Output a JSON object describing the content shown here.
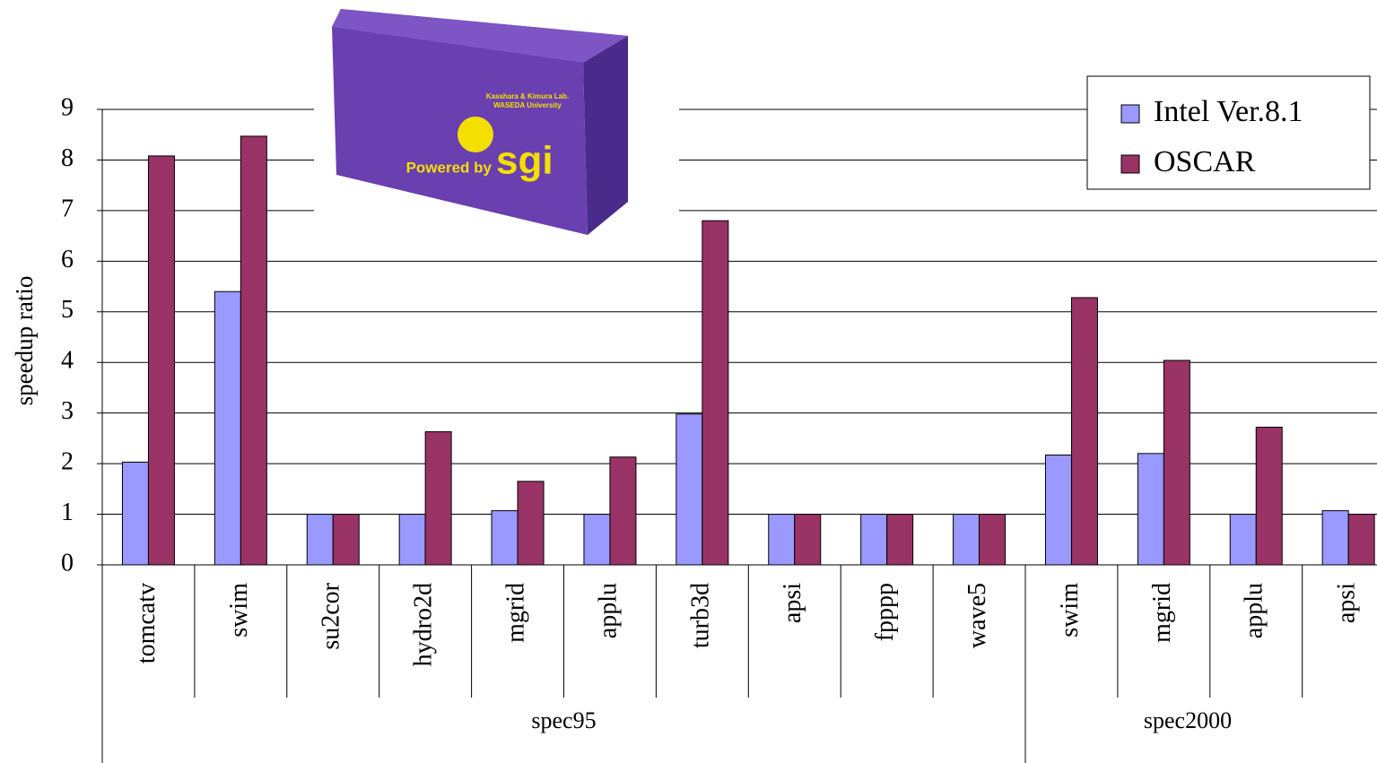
{
  "chart_data": {
    "type": "bar",
    "y_label": "speedup ratio",
    "categories": [
      "tomcatv",
      "swim",
      "su2cor",
      "hydro2d",
      "mgrid",
      "applu",
      "turb3d",
      "apsi",
      "fpppp",
      "wave5",
      "swim",
      "mgrid",
      "applu",
      "apsi"
    ],
    "groups": [
      {
        "name": "spec95",
        "count": 10
      },
      {
        "name": "spec2000",
        "count": 4
      }
    ],
    "series": [
      {
        "name": "Intel Ver.8.1",
        "color": "#9999ff",
        "values": [
          2.03,
          5.4,
          1,
          1,
          1.07,
          1,
          2.98,
          1,
          1,
          1,
          2.17,
          2.2,
          1,
          1.07
        ]
      },
      {
        "name": "OSCAR",
        "color": "#993366",
        "values": [
          8.08,
          8.47,
          1,
          2.63,
          1.65,
          2.13,
          6.8,
          1,
          1,
          1,
          5.28,
          4.04,
          2.72,
          1
        ]
      }
    ],
    "ylim": [
      0,
      9
    ],
    "yticks": [
      0,
      1,
      2,
      3,
      4,
      5,
      6,
      7,
      8,
      9
    ],
    "grid": true,
    "legend": "top-right",
    "image_text": [
      "Kasahara & Kimura Lab.",
      "WASEDA University",
      "Powered by",
      "sgi"
    ]
  }
}
